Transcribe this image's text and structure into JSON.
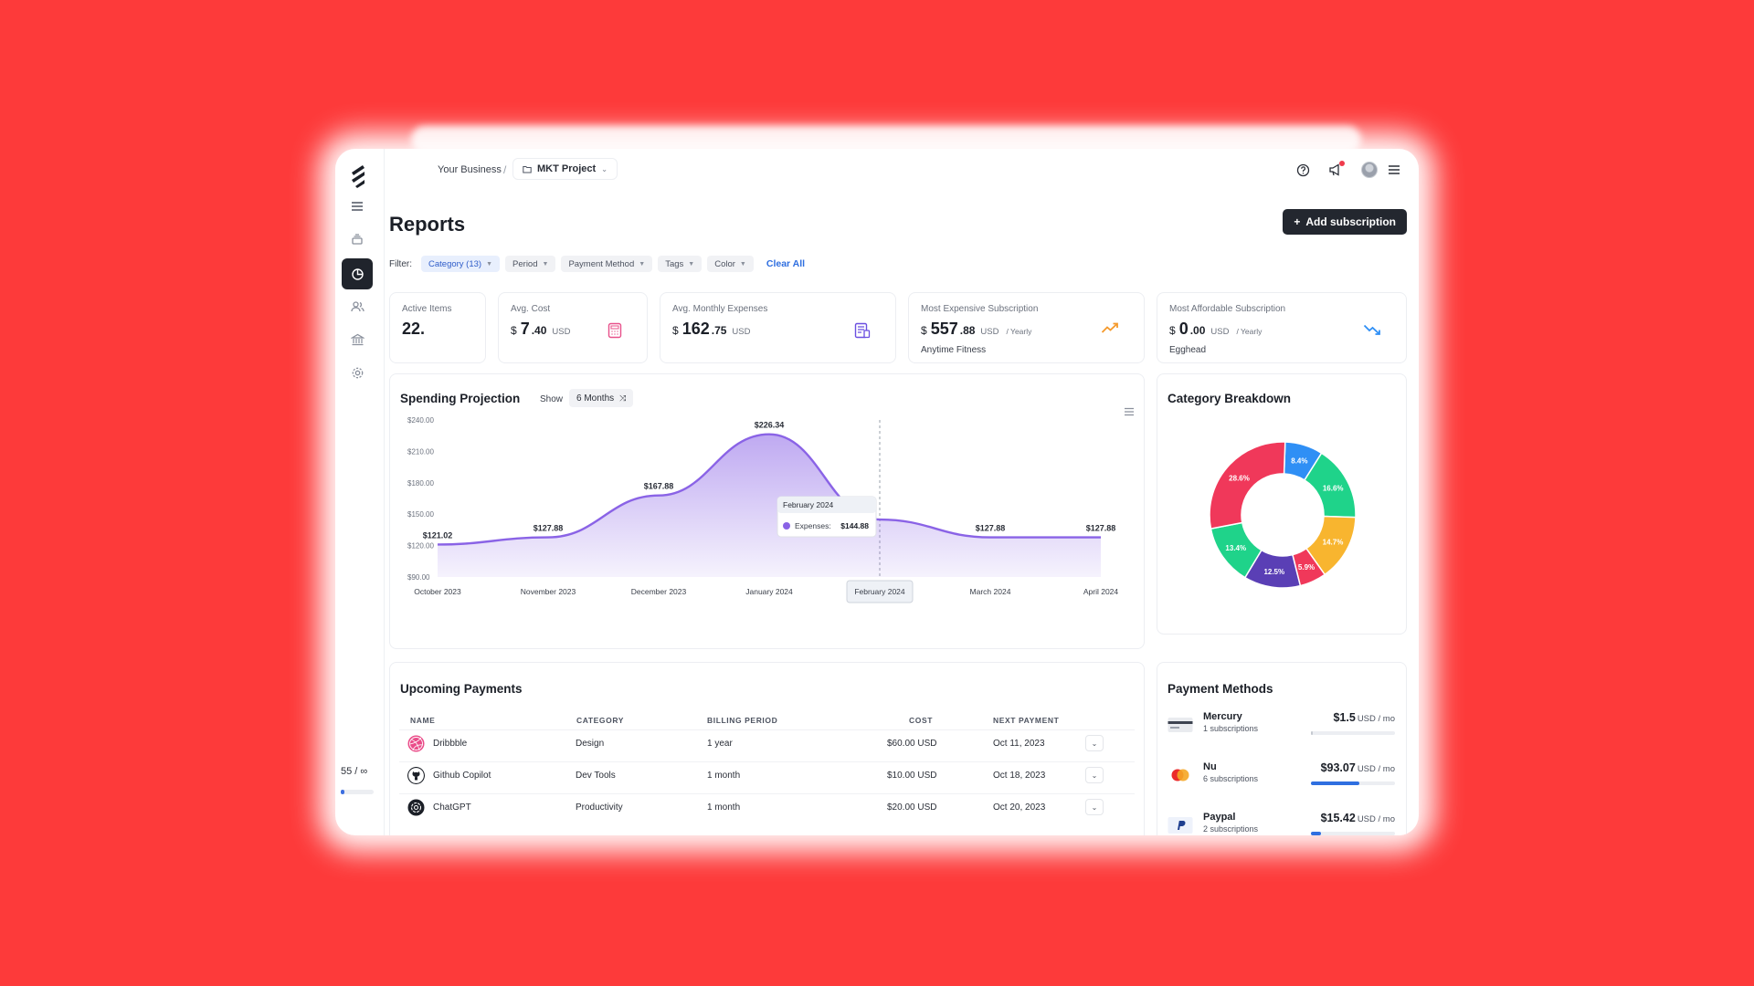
{
  "breadcrumb": {
    "business": "Your Business",
    "separator": "/",
    "project": "MKT Project"
  },
  "sidebar": {
    "counter_used": "55 /",
    "counter_limit": "∞",
    "usage_fraction": 0.08
  },
  "page": {
    "title": "Reports",
    "add_button": "Add subscription"
  },
  "filters": {
    "label": "Filter:",
    "chips": [
      "Category (13)",
      "Period",
      "Payment Method",
      "Tags",
      "Color"
    ],
    "clear": "Clear All"
  },
  "stats": {
    "active_items": {
      "label": "Active Items",
      "value": "22."
    },
    "avg_cost": {
      "label": "Avg. Cost",
      "currency": "$",
      "whole": "7",
      "dec": ".40",
      "unit": "USD"
    },
    "avg_monthly": {
      "label": "Avg. Monthly Expenses",
      "currency": "$",
      "whole": "162",
      "dec": ".75",
      "unit": "USD"
    },
    "most_expensive": {
      "label": "Most Expensive Subscription",
      "currency": "$",
      "whole": "557",
      "dec": ".88",
      "unit": "USD",
      "period": "/ Yearly",
      "name": "Anytime Fitness"
    },
    "most_affordable": {
      "label": "Most Affordable Subscription",
      "currency": "$",
      "whole": "0",
      "dec": ".00",
      "unit": "USD",
      "period": "/ Yearly",
      "name": "Egghead"
    }
  },
  "spending": {
    "title": "Spending Projection",
    "show_label": "Show",
    "range": "6 Months",
    "tooltip": {
      "title": "February 2024",
      "series": "Expenses:",
      "value": "$144.88"
    }
  },
  "chart_data": [
    {
      "type": "area",
      "title": "Spending Projection",
      "categories": [
        "October 2023",
        "November 2023",
        "December 2023",
        "January 2024",
        "February 2024",
        "March 2024",
        "April 2024"
      ],
      "series": [
        {
          "name": "Expenses",
          "values": [
            121.02,
            127.88,
            167.88,
            226.34,
            144.88,
            127.88,
            127.88
          ]
        }
      ],
      "point_labels": [
        "$121.02",
        "$127.88",
        "$167.88",
        "$226.34",
        "",
        "$127.88",
        "$127.88"
      ],
      "y_ticks": [
        "$90.00",
        "$120.00",
        "$150.00",
        "$180.00",
        "$210.00",
        "$240.00"
      ],
      "ylim": [
        90,
        240
      ],
      "highlighted_category": "February 2024",
      "color": "#8a63e6"
    },
    {
      "type": "pie",
      "title": "Category Breakdown",
      "labels": [
        "8.4%",
        "16.6%",
        "14.7%",
        "5.9%",
        "12.5%",
        "13.4%",
        "28.6%"
      ],
      "values": [
        8.4,
        16.6,
        14.7,
        5.9,
        12.5,
        13.4,
        28.6
      ],
      "colors": [
        "#2f8ff5",
        "#1fd38a",
        "#f8b52f",
        "#f0385a",
        "#5a3fb5",
        "#1fd38a",
        "#f0385a"
      ]
    }
  ],
  "upcoming": {
    "title": "Upcoming Payments",
    "columns": [
      "NAME",
      "CATEGORY",
      "BILLING PERIOD",
      "COST",
      "NEXT PAYMENT"
    ],
    "rows": [
      {
        "name": "Dribbble",
        "category": "Design",
        "period": "1 year",
        "cost": "$60.00 USD",
        "next": "Oct 11, 2023",
        "logo": "dribbble-logo"
      },
      {
        "name": "Github Copilot",
        "category": "Dev Tools",
        "period": "1 month",
        "cost": "$10.00 USD",
        "next": "Oct 18, 2023",
        "logo": "github-logo"
      },
      {
        "name": "ChatGPT",
        "category": "Productivity",
        "period": "1 month",
        "cost": "$20.00 USD",
        "next": "Oct 20, 2023",
        "logo": "openai-logo"
      }
    ]
  },
  "payment_methods": {
    "title": "Payment Methods",
    "items": [
      {
        "name": "Mercury",
        "subs": "1 subscriptions",
        "amount": "$1.5",
        "unit": "USD / mo",
        "fraction": 0.02
      },
      {
        "name": "Nu",
        "subs": "6 subscriptions",
        "amount": "$93.07",
        "unit": "USD / mo",
        "fraction": 0.58
      },
      {
        "name": "Paypal",
        "subs": "2 subscriptions",
        "amount": "$15.42",
        "unit": "USD / mo",
        "fraction": 0.12
      }
    ]
  },
  "icons": {
    "logo": "bolt-logo",
    "help": "help-circle-icon",
    "megaphone": "megaphone-icon",
    "avatar": "avatar",
    "menu": "hamburger-menu-icon"
  }
}
